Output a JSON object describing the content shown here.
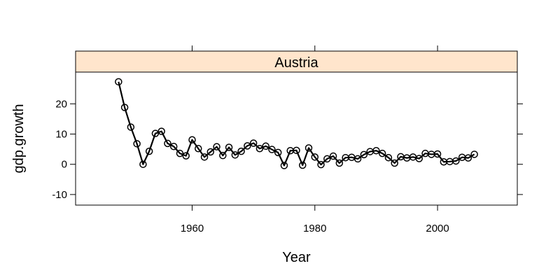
{
  "chart_data": {
    "type": "line",
    "panel_label": "Austria",
    "xlabel": "Year",
    "ylabel": "gdp.growth",
    "xlim": [
      1941,
      2013
    ],
    "ylim": [
      -13.5,
      30.5
    ],
    "x_ticks": [
      1960,
      1980,
      2000
    ],
    "y_ticks": [
      -10,
      0,
      10,
      20
    ],
    "grid": false,
    "markers": "open-circle",
    "line_color": "#000000",
    "strip_color": "#ffe5cc",
    "series": [
      {
        "x": [
          1948,
          1949,
          1950,
          1951,
          1952,
          1953,
          1954,
          1955,
          1956,
          1957,
          1958,
          1959,
          1960,
          1961,
          1962,
          1963,
          1964,
          1965,
          1966,
          1967,
          1968,
          1969,
          1970,
          1971,
          1972,
          1973,
          1974,
          1975,
          1976,
          1977,
          1978,
          1979,
          1980,
          1981,
          1982,
          1983,
          1984,
          1985,
          1986,
          1987,
          1988,
          1989,
          1990,
          1991,
          1992,
          1993,
          1994,
          1995,
          1996,
          1997,
          1998,
          1999,
          2000,
          2001,
          2002,
          2003,
          2004,
          2005,
          2006
        ],
        "values": [
          27.3,
          18.8,
          12.3,
          6.8,
          0.0,
          4.3,
          10.2,
          10.9,
          6.9,
          5.9,
          3.6,
          2.8,
          8.1,
          5.2,
          2.4,
          4.1,
          5.8,
          2.9,
          5.6,
          3.1,
          4.3,
          6.1,
          7.0,
          5.2,
          6.0,
          4.9,
          3.9,
          -0.4,
          4.5,
          4.6,
          -0.3,
          5.4,
          2.4,
          -0.1,
          1.8,
          2.7,
          0.4,
          2.2,
          2.3,
          1.8,
          3.2,
          4.2,
          4.5,
          3.6,
          2.2,
          0.4,
          2.5,
          2.1,
          2.4,
          1.9,
          3.6,
          3.3,
          3.4,
          0.8,
          0.9,
          1.1,
          2.3,
          2.1,
          3.3
        ]
      }
    ]
  }
}
